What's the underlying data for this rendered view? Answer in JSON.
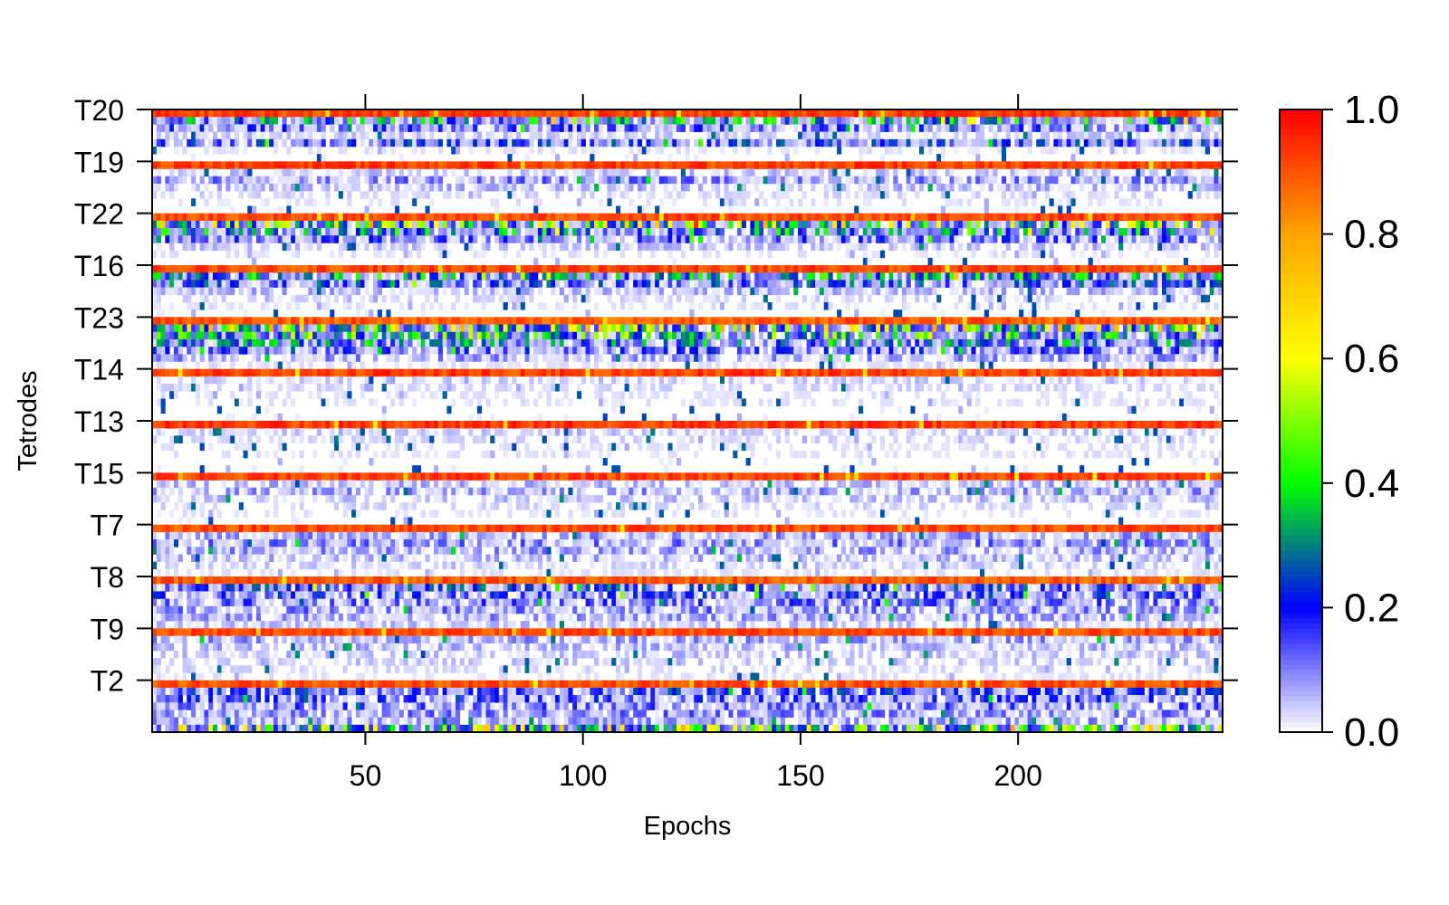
{
  "chart_data": {
    "type": "heatmap",
    "title": "",
    "xlabel": "Epochs",
    "ylabel": "Tetrodes",
    "x_range": [
      1,
      247
    ],
    "x_ticks": [
      50,
      100,
      150,
      200
    ],
    "x_tick_labels": [
      "50",
      "100",
      "150",
      "200"
    ],
    "y_tick_labels": [
      "T20",
      "T19",
      "T22",
      "T16",
      "T23",
      "T14",
      "T13",
      "T15",
      "T7",
      "T8",
      "T9",
      "T2"
    ],
    "y_ticks_order": "top-to-bottom",
    "colorbar": {
      "range": [
        0.0,
        1.0
      ],
      "tick_labels": [
        "0.0",
        "0.2",
        "0.4",
        "0.6",
        "0.8",
        "1.0"
      ],
      "tick_values": [
        0.0,
        0.2,
        0.4,
        0.6,
        0.8,
        1.0
      ],
      "stops": [
        {
          "value": 0.0,
          "color": "#ffffff"
        },
        {
          "value": 0.2,
          "color": "#0000ff"
        },
        {
          "value": 0.3,
          "color": "#008080"
        },
        {
          "value": 0.4,
          "color": "#00ff00"
        },
        {
          "value": 0.6,
          "color": "#ffff00"
        },
        {
          "value": 0.8,
          "color": "#ffa500"
        },
        {
          "value": 1.0,
          "color": "#ff0000"
        }
      ]
    },
    "bands": [
      {
        "tetrode": "T20",
        "row_values": [
          0.98,
          0.3,
          0.14,
          0.04,
          0.18,
          0.02,
          0.01
        ]
      },
      {
        "tetrode": "T19",
        "row_values": [
          0.98,
          0.05,
          0.1,
          0.06,
          0.03,
          0.02,
          0.01
        ]
      },
      {
        "tetrode": "T22",
        "row_values": [
          0.97,
          0.45,
          0.28,
          0.14,
          0.05,
          0.02,
          0.01
        ]
      },
      {
        "tetrode": "T16",
        "row_values": [
          0.97,
          0.3,
          0.2,
          0.06,
          0.03,
          0.02,
          0.01
        ]
      },
      {
        "tetrode": "T23",
        "row_values": [
          0.95,
          0.5,
          0.35,
          0.25,
          0.15,
          0.08,
          0.02
        ]
      },
      {
        "tetrode": "T14",
        "row_values": [
          0.98,
          0.04,
          0.03,
          0.02,
          0.02,
          0.01,
          0.01
        ]
      },
      {
        "tetrode": "T13",
        "row_values": [
          0.99,
          0.04,
          0.03,
          0.02,
          0.02,
          0.01,
          0.01
        ]
      },
      {
        "tetrode": "T15",
        "row_values": [
          0.98,
          0.06,
          0.08,
          0.05,
          0.03,
          0.02,
          0.01
        ]
      },
      {
        "tetrode": "T7",
        "row_values": [
          0.97,
          0.08,
          0.1,
          0.08,
          0.06,
          0.04,
          0.02
        ]
      },
      {
        "tetrode": "T8",
        "row_values": [
          0.95,
          0.2,
          0.16,
          0.12,
          0.1,
          0.08,
          0.05
        ]
      },
      {
        "tetrode": "T9",
        "row_values": [
          0.97,
          0.08,
          0.06,
          0.05,
          0.04,
          0.03,
          0.02
        ]
      },
      {
        "tetrode": "T2",
        "row_values": [
          0.96,
          0.18,
          0.15,
          0.12,
          0.1,
          0.08,
          0.45
        ]
      }
    ]
  }
}
